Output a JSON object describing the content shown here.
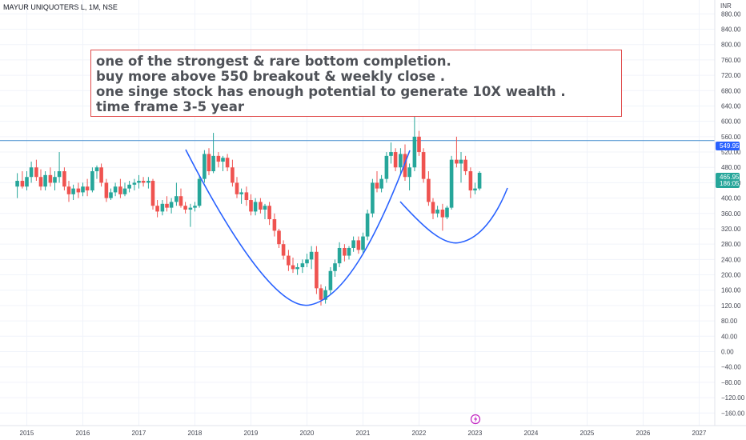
{
  "symbol": "MAYUR UNIQUOTERS L, 1M, NSE",
  "currency_label": "INR",
  "note": {
    "lines": [
      "one of the strongest & rare bottom completion.",
      "buy more above 550 breakout & weekly close .",
      "one singe stock has enough potential to generate 10X wealth .",
      "time frame 3-5 year"
    ],
    "border_color": "#e04b4b"
  },
  "colors": {
    "up": "#26a69a",
    "down": "#ef5350",
    "annotation_line": "#2962ff",
    "horizontal_line": "#5b9bd5",
    "tag_blue": "#2962ff",
    "tag_green": "#26a69a",
    "marker": "#c020c0"
  },
  "price_tags": {
    "breakout": "549.95",
    "last": "465.95",
    "countdown": "186:05"
  },
  "marker_icon": "lightning-icon",
  "chart_data": {
    "type": "candlestick",
    "title": "MAYUR UNIQUOTERS L, 1M, NSE",
    "ylabel": "INR",
    "ylim": [
      -180,
      900
    ],
    "y_ticks": [
      880,
      840,
      800,
      760,
      720,
      680,
      640,
      600,
      560,
      520,
      480,
      440,
      400,
      360,
      320,
      280,
      240,
      200,
      160,
      120,
      80,
      40,
      0,
      -40,
      -80,
      -120,
      -160
    ],
    "y_tick_labels": [
      "880.00",
      "840.00",
      "800.00",
      "760.00",
      "720.00",
      "680.00",
      "640.00",
      "600.00",
      "560.00",
      "520.00",
      "480.00",
      "440.00",
      "400.00",
      "360.00",
      "320.00",
      "280.00",
      "240.00",
      "200.00",
      "160.00",
      "120.00",
      "80.00",
      "40.00",
      "0.00",
      "−40.00",
      "−80.00",
      "−120.00",
      "−160.00"
    ],
    "x_ticks": [
      "2015",
      "2016",
      "2017",
      "2018",
      "2019",
      "2020",
      "2021",
      "2022",
      "2023",
      "2024",
      "2025",
      "2026",
      "2027"
    ],
    "xlim": [
      2014.8,
      2027.4
    ],
    "grid": true,
    "horizontal_line": 549.95,
    "ohlc": [
      {
        "t": 2014.83,
        "o": 430,
        "h": 465,
        "l": 400,
        "c": 445
      },
      {
        "t": 2014.92,
        "o": 445,
        "h": 470,
        "l": 425,
        "c": 430
      },
      {
        "t": 2015.0,
        "o": 430,
        "h": 470,
        "l": 420,
        "c": 455
      },
      {
        "t": 2015.08,
        "o": 455,
        "h": 495,
        "l": 440,
        "c": 480
      },
      {
        "t": 2015.17,
        "o": 480,
        "h": 500,
        "l": 445,
        "c": 455
      },
      {
        "t": 2015.25,
        "o": 455,
        "h": 475,
        "l": 420,
        "c": 430
      },
      {
        "t": 2015.33,
        "o": 430,
        "h": 470,
        "l": 420,
        "c": 460
      },
      {
        "t": 2015.42,
        "o": 460,
        "h": 480,
        "l": 430,
        "c": 440
      },
      {
        "t": 2015.5,
        "o": 440,
        "h": 470,
        "l": 420,
        "c": 455
      },
      {
        "t": 2015.58,
        "o": 455,
        "h": 520,
        "l": 440,
        "c": 470
      },
      {
        "t": 2015.67,
        "o": 470,
        "h": 480,
        "l": 420,
        "c": 430
      },
      {
        "t": 2015.75,
        "o": 430,
        "h": 445,
        "l": 390,
        "c": 410
      },
      {
        "t": 2015.83,
        "o": 410,
        "h": 435,
        "l": 395,
        "c": 425
      },
      {
        "t": 2015.92,
        "o": 425,
        "h": 440,
        "l": 400,
        "c": 415
      },
      {
        "t": 2016.0,
        "o": 415,
        "h": 440,
        "l": 405,
        "c": 430
      },
      {
        "t": 2016.08,
        "o": 430,
        "h": 450,
        "l": 405,
        "c": 420
      },
      {
        "t": 2016.17,
        "o": 420,
        "h": 480,
        "l": 415,
        "c": 470
      },
      {
        "t": 2016.25,
        "o": 470,
        "h": 485,
        "l": 450,
        "c": 480
      },
      {
        "t": 2016.33,
        "o": 480,
        "h": 490,
        "l": 430,
        "c": 440
      },
      {
        "t": 2016.42,
        "o": 440,
        "h": 450,
        "l": 390,
        "c": 400
      },
      {
        "t": 2016.5,
        "o": 400,
        "h": 425,
        "l": 395,
        "c": 415
      },
      {
        "t": 2016.58,
        "o": 415,
        "h": 440,
        "l": 405,
        "c": 430
      },
      {
        "t": 2016.67,
        "o": 430,
        "h": 450,
        "l": 400,
        "c": 410
      },
      {
        "t": 2016.75,
        "o": 410,
        "h": 440,
        "l": 405,
        "c": 425
      },
      {
        "t": 2016.83,
        "o": 425,
        "h": 445,
        "l": 415,
        "c": 435
      },
      {
        "t": 2016.92,
        "o": 435,
        "h": 450,
        "l": 420,
        "c": 440
      },
      {
        "t": 2017.0,
        "o": 440,
        "h": 460,
        "l": 425,
        "c": 445
      },
      {
        "t": 2017.08,
        "o": 445,
        "h": 455,
        "l": 430,
        "c": 440
      },
      {
        "t": 2017.17,
        "o": 440,
        "h": 455,
        "l": 425,
        "c": 445
      },
      {
        "t": 2017.25,
        "o": 445,
        "h": 450,
        "l": 370,
        "c": 380
      },
      {
        "t": 2017.33,
        "o": 380,
        "h": 395,
        "l": 350,
        "c": 365
      },
      {
        "t": 2017.42,
        "o": 365,
        "h": 395,
        "l": 355,
        "c": 385
      },
      {
        "t": 2017.5,
        "o": 385,
        "h": 405,
        "l": 365,
        "c": 375
      },
      {
        "t": 2017.58,
        "o": 375,
        "h": 400,
        "l": 360,
        "c": 390
      },
      {
        "t": 2017.67,
        "o": 390,
        "h": 440,
        "l": 380,
        "c": 405
      },
      {
        "t": 2017.75,
        "o": 405,
        "h": 425,
        "l": 375,
        "c": 380
      },
      {
        "t": 2017.83,
        "o": 380,
        "h": 390,
        "l": 360,
        "c": 370
      },
      {
        "t": 2017.92,
        "o": 370,
        "h": 385,
        "l": 325,
        "c": 375
      },
      {
        "t": 2018.0,
        "o": 375,
        "h": 390,
        "l": 365,
        "c": 380
      },
      {
        "t": 2018.08,
        "o": 380,
        "h": 460,
        "l": 375,
        "c": 450
      },
      {
        "t": 2018.17,
        "o": 450,
        "h": 525,
        "l": 440,
        "c": 515
      },
      {
        "t": 2018.25,
        "o": 515,
        "h": 530,
        "l": 460,
        "c": 470
      },
      {
        "t": 2018.33,
        "o": 470,
        "h": 570,
        "l": 465,
        "c": 510
      },
      {
        "t": 2018.42,
        "o": 510,
        "h": 520,
        "l": 480,
        "c": 495
      },
      {
        "t": 2018.5,
        "o": 495,
        "h": 510,
        "l": 470,
        "c": 505
      },
      {
        "t": 2018.58,
        "o": 505,
        "h": 515,
        "l": 470,
        "c": 480
      },
      {
        "t": 2018.67,
        "o": 480,
        "h": 500,
        "l": 430,
        "c": 440
      },
      {
        "t": 2018.75,
        "o": 440,
        "h": 455,
        "l": 400,
        "c": 410
      },
      {
        "t": 2018.83,
        "o": 410,
        "h": 425,
        "l": 385,
        "c": 415
      },
      {
        "t": 2018.92,
        "o": 415,
        "h": 430,
        "l": 380,
        "c": 395
      },
      {
        "t": 2019.0,
        "o": 395,
        "h": 410,
        "l": 355,
        "c": 365
      },
      {
        "t": 2019.08,
        "o": 365,
        "h": 400,
        "l": 355,
        "c": 390
      },
      {
        "t": 2019.17,
        "o": 390,
        "h": 400,
        "l": 360,
        "c": 370
      },
      {
        "t": 2019.25,
        "o": 370,
        "h": 385,
        "l": 345,
        "c": 380
      },
      {
        "t": 2019.33,
        "o": 380,
        "h": 390,
        "l": 330,
        "c": 345
      },
      {
        "t": 2019.42,
        "o": 345,
        "h": 360,
        "l": 300,
        "c": 315
      },
      {
        "t": 2019.5,
        "o": 315,
        "h": 320,
        "l": 270,
        "c": 280
      },
      {
        "t": 2019.58,
        "o": 280,
        "h": 290,
        "l": 240,
        "c": 250
      },
      {
        "t": 2019.67,
        "o": 250,
        "h": 265,
        "l": 210,
        "c": 225
      },
      {
        "t": 2019.75,
        "o": 225,
        "h": 245,
        "l": 205,
        "c": 215
      },
      {
        "t": 2019.83,
        "o": 215,
        "h": 230,
        "l": 200,
        "c": 220
      },
      {
        "t": 2019.92,
        "o": 220,
        "h": 240,
        "l": 205,
        "c": 230
      },
      {
        "t": 2020.0,
        "o": 230,
        "h": 255,
        "l": 220,
        "c": 240
      },
      {
        "t": 2020.08,
        "o": 240,
        "h": 275,
        "l": 215,
        "c": 260
      },
      {
        "t": 2020.17,
        "o": 260,
        "h": 275,
        "l": 150,
        "c": 165
      },
      {
        "t": 2020.25,
        "o": 165,
        "h": 175,
        "l": 120,
        "c": 135
      },
      {
        "t": 2020.33,
        "o": 135,
        "h": 170,
        "l": 125,
        "c": 160
      },
      {
        "t": 2020.42,
        "o": 160,
        "h": 220,
        "l": 150,
        "c": 210
      },
      {
        "t": 2020.5,
        "o": 210,
        "h": 240,
        "l": 195,
        "c": 230
      },
      {
        "t": 2020.58,
        "o": 230,
        "h": 285,
        "l": 220,
        "c": 270
      },
      {
        "t": 2020.67,
        "o": 270,
        "h": 280,
        "l": 235,
        "c": 250
      },
      {
        "t": 2020.75,
        "o": 250,
        "h": 275,
        "l": 240,
        "c": 270
      },
      {
        "t": 2020.83,
        "o": 270,
        "h": 300,
        "l": 260,
        "c": 290
      },
      {
        "t": 2020.92,
        "o": 290,
        "h": 300,
        "l": 255,
        "c": 265
      },
      {
        "t": 2021.0,
        "o": 265,
        "h": 310,
        "l": 255,
        "c": 300
      },
      {
        "t": 2021.08,
        "o": 300,
        "h": 370,
        "l": 290,
        "c": 360
      },
      {
        "t": 2021.17,
        "o": 360,
        "h": 450,
        "l": 350,
        "c": 440
      },
      {
        "t": 2021.25,
        "o": 440,
        "h": 470,
        "l": 415,
        "c": 425
      },
      {
        "t": 2021.33,
        "o": 425,
        "h": 460,
        "l": 415,
        "c": 450
      },
      {
        "t": 2021.42,
        "o": 450,
        "h": 520,
        "l": 440,
        "c": 510
      },
      {
        "t": 2021.5,
        "o": 510,
        "h": 545,
        "l": 490,
        "c": 520
      },
      {
        "t": 2021.58,
        "o": 520,
        "h": 530,
        "l": 470,
        "c": 480
      },
      {
        "t": 2021.67,
        "o": 480,
        "h": 530,
        "l": 460,
        "c": 515
      },
      {
        "t": 2021.75,
        "o": 515,
        "h": 540,
        "l": 445,
        "c": 455
      },
      {
        "t": 2021.83,
        "o": 455,
        "h": 490,
        "l": 420,
        "c": 480
      },
      {
        "t": 2021.92,
        "o": 480,
        "h": 680,
        "l": 470,
        "c": 560
      },
      {
        "t": 2022.0,
        "o": 560,
        "h": 575,
        "l": 510,
        "c": 520
      },
      {
        "t": 2022.08,
        "o": 520,
        "h": 530,
        "l": 440,
        "c": 450
      },
      {
        "t": 2022.17,
        "o": 450,
        "h": 470,
        "l": 380,
        "c": 390
      },
      {
        "t": 2022.25,
        "o": 390,
        "h": 400,
        "l": 345,
        "c": 360
      },
      {
        "t": 2022.33,
        "o": 360,
        "h": 380,
        "l": 350,
        "c": 370
      },
      {
        "t": 2022.42,
        "o": 370,
        "h": 385,
        "l": 315,
        "c": 350
      },
      {
        "t": 2022.5,
        "o": 350,
        "h": 380,
        "l": 345,
        "c": 375
      },
      {
        "t": 2022.58,
        "o": 375,
        "h": 510,
        "l": 370,
        "c": 500
      },
      {
        "t": 2022.67,
        "o": 500,
        "h": 560,
        "l": 480,
        "c": 490
      },
      {
        "t": 2022.75,
        "o": 490,
        "h": 520,
        "l": 440,
        "c": 500
      },
      {
        "t": 2022.83,
        "o": 500,
        "h": 510,
        "l": 460,
        "c": 470
      },
      {
        "t": 2022.92,
        "o": 470,
        "h": 480,
        "l": 400,
        "c": 420
      },
      {
        "t": 2023.0,
        "o": 420,
        "h": 440,
        "l": 410,
        "c": 425
      },
      {
        "t": 2023.08,
        "o": 425,
        "h": 470,
        "l": 420,
        "c": 465.95
      }
    ]
  }
}
